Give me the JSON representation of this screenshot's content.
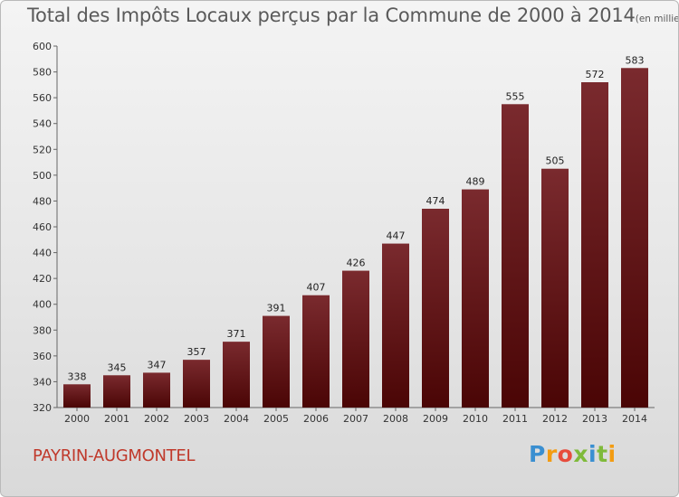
{
  "title": "Total des Impôts Locaux perçus par la Commune de 2000 à 2014",
  "unit_label": "(en milliers d'€)",
  "commune_name": "PAYRIN-AUGMONTEL",
  "brand": {
    "letters": [
      "P",
      "r",
      "o",
      "x",
      "i",
      "t",
      "i"
    ],
    "colors": [
      "#3a8fd1",
      "#f39c12",
      "#e74c3c",
      "#7fba3a",
      "#3a8fd1",
      "#7fba3a",
      "#f39c12"
    ]
  },
  "colors": {
    "bar_top": "#7a2a2e",
    "bar_bottom": "#4a0505",
    "title": "#5a5a5a",
    "commune": "#c0392b"
  },
  "chart_data": {
    "type": "bar",
    "title": "Total des Impôts Locaux perçus par la Commune de 2000 à 2014",
    "xlabel": "",
    "ylabel": "en milliers d'€",
    "categories": [
      "2000",
      "2001",
      "2002",
      "2003",
      "2004",
      "2005",
      "2006",
      "2007",
      "2008",
      "2009",
      "2010",
      "2011",
      "2012",
      "2013",
      "2014"
    ],
    "values": [
      338,
      345,
      347,
      357,
      371,
      391,
      407,
      426,
      447,
      474,
      489,
      555,
      505,
      572,
      583
    ],
    "ylim": [
      320,
      600
    ],
    "yticks": [
      320,
      340,
      360,
      380,
      400,
      420,
      440,
      460,
      480,
      500,
      520,
      540,
      560,
      580,
      600
    ],
    "grid": false
  }
}
